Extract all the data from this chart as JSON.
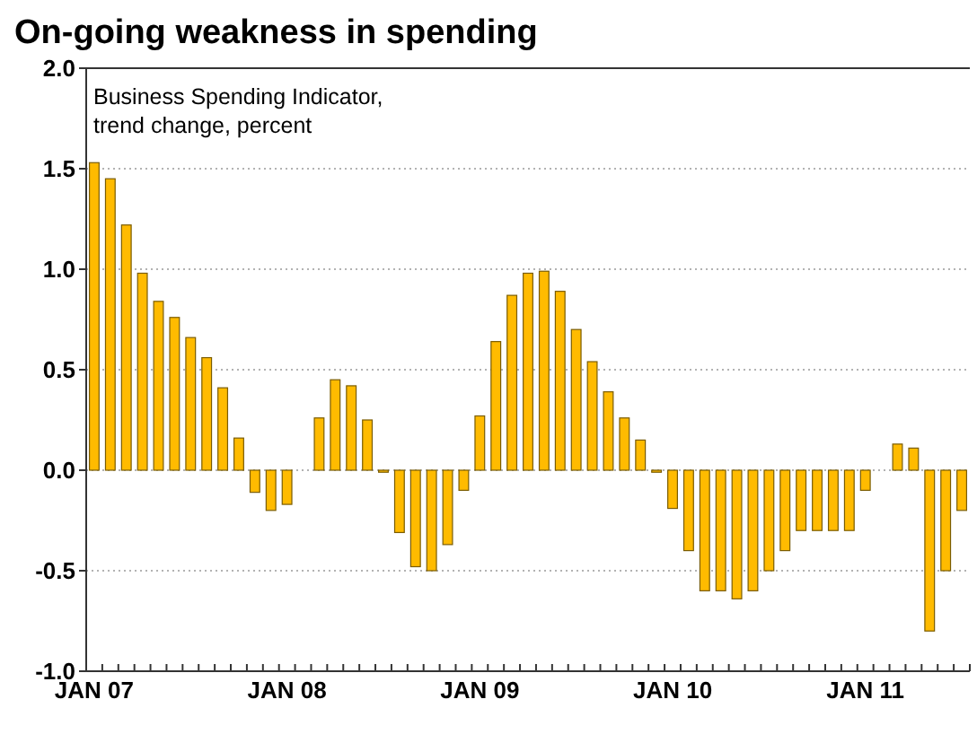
{
  "chart_data": {
    "type": "bar",
    "title": "On-going weakness in spending",
    "subtitle": "Business Spending Indicator,\ntrend change, percent",
    "categories": [
      "JAN 07",
      null,
      null,
      null,
      null,
      null,
      null,
      null,
      null,
      null,
      null,
      null,
      "JAN 08",
      null,
      null,
      null,
      null,
      null,
      null,
      null,
      null,
      null,
      null,
      null,
      "JAN 09",
      null,
      null,
      null,
      null,
      null,
      null,
      null,
      null,
      null,
      null,
      null,
      "JAN 10",
      null,
      null,
      null,
      null,
      null,
      null,
      null,
      null,
      null,
      null,
      null,
      "JAN 11",
      null,
      null,
      null,
      null,
      null,
      null
    ],
    "values": [
      1.53,
      1.45,
      1.22,
      0.98,
      0.84,
      0.76,
      0.66,
      0.56,
      0.41,
      0.16,
      -0.11,
      -0.2,
      -0.17,
      0,
      0.26,
      0.45,
      0.42,
      0.25,
      -0.01,
      -0.31,
      -0.48,
      -0.5,
      -0.37,
      -0.1,
      0.27,
      0.64,
      0.87,
      0.98,
      0.99,
      0.89,
      0.7,
      0.54,
      0.39,
      0.26,
      0.15,
      -0.01,
      -0.19,
      -0.4,
      -0.6,
      -0.6,
      -0.64,
      -0.6,
      -0.5,
      -0.4,
      -0.3,
      -0.3,
      -0.3,
      -0.3,
      -0.1,
      0,
      0.13,
      0.11,
      -0.8,
      -0.5,
      -0.2
    ],
    "color": "#ffbb00",
    "ylim": [
      -1,
      2
    ],
    "yticks": [
      {
        "value": -1,
        "label": "-1.0"
      },
      {
        "value": -0.5,
        "label": "-0.5"
      },
      {
        "value": 0,
        "label": "0.0"
      },
      {
        "value": 0.5,
        "label": "0.5"
      },
      {
        "value": 1,
        "label": "1.0"
      },
      {
        "value": 1.5,
        "label": "1.5"
      },
      {
        "value": 2,
        "label": "2.0"
      }
    ],
    "grid": "y"
  }
}
